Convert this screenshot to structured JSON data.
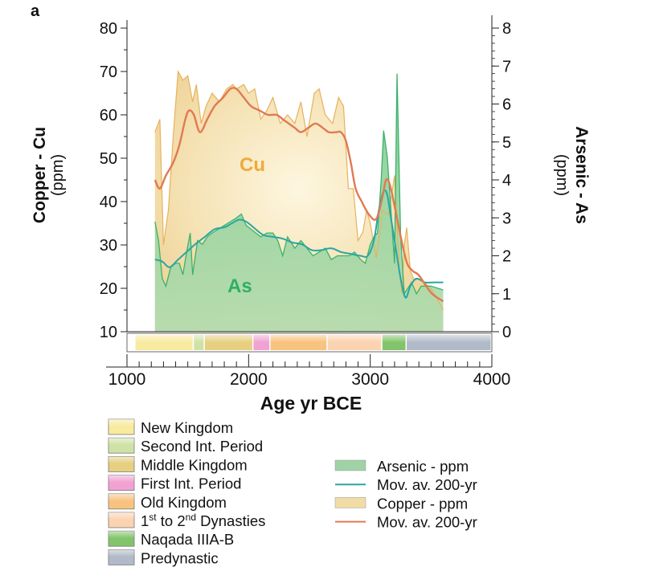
{
  "chart_data": {
    "type": "area",
    "panel_label": "a",
    "xlabel": "Age yr BCE",
    "ylabel_left": {
      "main": "Copper - Cu",
      "unit": "(ppm)"
    },
    "ylabel_right": {
      "main": "Arsenic - As",
      "unit": "(ppm)"
    },
    "xlim": [
      1000,
      4000
    ],
    "x_ticks": [
      1000,
      2000,
      3000,
      4000
    ],
    "ylim_left": [
      10,
      80
    ],
    "y_ticks_left": [
      10,
      20,
      30,
      40,
      50,
      60,
      70,
      80
    ],
    "ylim_right": [
      0,
      8
    ],
    "y_ticks_right": [
      0,
      1,
      2,
      3,
      4,
      5,
      6,
      7,
      8
    ],
    "area_labels": {
      "cu": "Cu",
      "as": "As"
    },
    "colors": {
      "copper_fill": "#f2dca6",
      "copper_line": "#e7b25c",
      "copper_mov": "#e07a52",
      "arsenic_fill": "#9fd3a6",
      "arsenic_line": "#3bb26b",
      "arsenic_mov": "#2aa5a3",
      "cu_text": "#eeaa3c",
      "as_text": "#2fb066"
    },
    "series": [
      {
        "name": "Copper - ppm",
        "axis": "left",
        "x": [
          1230,
          1270,
          1300,
          1340,
          1380,
          1420,
          1460,
          1500,
          1540,
          1570,
          1610,
          1650,
          1700,
          1760,
          1820,
          1870,
          1900,
          1960,
          2000,
          2050,
          2100,
          2150,
          2200,
          2260,
          2320,
          2380,
          2430,
          2480,
          2540,
          2580,
          2630,
          2690,
          2740,
          2780,
          2820,
          2860,
          2900,
          2940,
          2970,
          3000,
          3050,
          3100,
          3150,
          3200,
          3240,
          3260,
          3280,
          3300,
          3330,
          3360,
          3420,
          3500,
          3600
        ],
        "values": [
          56,
          59,
          30,
          38,
          55,
          70,
          68,
          69,
          63,
          67,
          58,
          62,
          65,
          63,
          66,
          67,
          66,
          67,
          65,
          66,
          59,
          61,
          64,
          58,
          60,
          58,
          63,
          55,
          65,
          66,
          60,
          58,
          64,
          62,
          43,
          43,
          31,
          33,
          38,
          35,
          27,
          38,
          37,
          46,
          24,
          19,
          30,
          34,
          24,
          22,
          22,
          20,
          15
        ]
      },
      {
        "name": "Mov. av. 200-yr",
        "axis": "left",
        "x": [
          1230,
          1270,
          1320,
          1380,
          1430,
          1480,
          1510,
          1550,
          1600,
          1660,
          1720,
          1790,
          1850,
          1900,
          1960,
          2020,
          2090,
          2160,
          2230,
          2280,
          2330,
          2380,
          2430,
          2490,
          2550,
          2610,
          2660,
          2720,
          2760,
          2800,
          2840,
          2880,
          2930,
          2990,
          3050,
          3100,
          3130,
          3160,
          3200,
          3250,
          3300,
          3350,
          3400,
          3500,
          3600
        ],
        "values": [
          45,
          43,
          46,
          49,
          53,
          59,
          61,
          60,
          56,
          59,
          62,
          64,
          66,
          66,
          64,
          62,
          61,
          60,
          60,
          59,
          58,
          57,
          56,
          57,
          58,
          57,
          56,
          56,
          56,
          54,
          49,
          43,
          40,
          37,
          36,
          41,
          45,
          44,
          39,
          32,
          26,
          24,
          23,
          19,
          17
        ]
      },
      {
        "name": "Arsenic - ppm",
        "axis": "right",
        "x": [
          1230,
          1260,
          1290,
          1320,
          1360,
          1400,
          1430,
          1460,
          1490,
          1520,
          1540,
          1580,
          1620,
          1660,
          1700,
          1750,
          1800,
          1850,
          1900,
          1940,
          1980,
          2020,
          2060,
          2100,
          2150,
          2200,
          2240,
          2280,
          2320,
          2380,
          2430,
          2480,
          2530,
          2580,
          2630,
          2680,
          2730,
          2780,
          2830,
          2870,
          2920,
          2960,
          3000,
          3030,
          3060,
          3090,
          3110,
          3140,
          3170,
          3200,
          3220,
          3250,
          3280,
          3300,
          3340,
          3380,
          3420,
          3500,
          3600
        ],
        "values": [
          2.9,
          2.4,
          1.4,
          1.2,
          1.7,
          1.8,
          1.8,
          1.5,
          2.1,
          2.6,
          1.5,
          2.4,
          2.3,
          2.5,
          2.6,
          2.7,
          2.8,
          2.9,
          3.0,
          3.1,
          2.8,
          2.7,
          2.6,
          2.5,
          2.6,
          2.6,
          2.4,
          2.0,
          2.5,
          2.2,
          2.4,
          2.2,
          2.0,
          2.1,
          2.2,
          1.9,
          2.0,
          2.0,
          2.0,
          2.1,
          1.9,
          1.8,
          2.3,
          2.5,
          2.6,
          4.0,
          5.3,
          4.6,
          3.2,
          1.8,
          6.8,
          2.5,
          1.0,
          1.1,
          1.3,
          1.0,
          1.2,
          1.2,
          1.1
        ]
      },
      {
        "name": "Mov. av. 200-yr",
        "axis": "right",
        "x": [
          1230,
          1290,
          1350,
          1420,
          1490,
          1560,
          1640,
          1720,
          1800,
          1860,
          1920,
          1980,
          2040,
          2120,
          2200,
          2280,
          2360,
          2440,
          2520,
          2600,
          2680,
          2760,
          2840,
          2920,
          2980,
          3030,
          3070,
          3110,
          3140,
          3170,
          3210,
          3250,
          3290,
          3330,
          3380,
          3450,
          3530,
          3600
        ],
        "values": [
          1.9,
          1.85,
          1.7,
          1.9,
          2.1,
          2.3,
          2.5,
          2.7,
          2.75,
          2.85,
          2.95,
          2.9,
          2.75,
          2.55,
          2.5,
          2.45,
          2.35,
          2.3,
          2.15,
          2.15,
          2.2,
          2.1,
          2.05,
          2.0,
          2.0,
          2.4,
          3.2,
          3.7,
          3.6,
          3.0,
          2.2,
          1.4,
          0.9,
          1.2,
          1.4,
          1.3,
          1.3,
          1.3
        ]
      }
    ],
    "periods": [
      {
        "name": "New Kingdom",
        "start": 1070,
        "end": 1550,
        "color": "#f8ea9e"
      },
      {
        "name": "Second Int. Period",
        "start": 1550,
        "end": 1640,
        "color": "#cfe2a6"
      },
      {
        "name": "Middle Kingdom",
        "start": 1640,
        "end": 2040,
        "color": "#e7cf80"
      },
      {
        "name": "First Int. Period",
        "start": 2040,
        "end": 2180,
        "color": "#f1a2d2"
      },
      {
        "name": "Old Kingdom",
        "start": 2180,
        "end": 2650,
        "color": "#f8c37f"
      },
      {
        "name": "1st to 2nd Dynasties",
        "start": 2650,
        "end": 3100,
        "color": "#fbd3b0"
      },
      {
        "name": "Naqada IIIA-B",
        "start": 3100,
        "end": 3300,
        "color": "#82c46c"
      },
      {
        "name": "Predynastic",
        "start": 3300,
        "end": 4000,
        "color": "#b1bac8"
      }
    ]
  },
  "legend_left": [
    {
      "text": "New Kingdom",
      "color": "#f8ea9e"
    },
    {
      "text": "Second Int. Period",
      "color": "#cfe2a6"
    },
    {
      "text": "Middle Kingdom",
      "color": "#e7cf80"
    },
    {
      "text": "First Int. Period",
      "color": "#f1a2d2"
    },
    {
      "text": "Old Kingdom",
      "color": "#f8c37f"
    },
    {
      "text": "1st to 2nd Dynasties",
      "color": "#fbd3b0",
      "sup": true
    },
    {
      "text": "Naqada IIIA-B",
      "color": "#82c46c"
    },
    {
      "text": "Predynastic",
      "color": "#b1bac8"
    }
  ],
  "legend_right": [
    {
      "text": "Arsenic - ppm",
      "kind": "area",
      "color": "#9fd3a6"
    },
    {
      "text": "Mov. av. 200-yr",
      "kind": "line",
      "color": "#2aa5a3"
    },
    {
      "text": "Copper - ppm",
      "kind": "area",
      "color": "#f2dca6"
    },
    {
      "text": "Mov. av. 200-yr",
      "kind": "line",
      "color": "#e07a52"
    }
  ]
}
